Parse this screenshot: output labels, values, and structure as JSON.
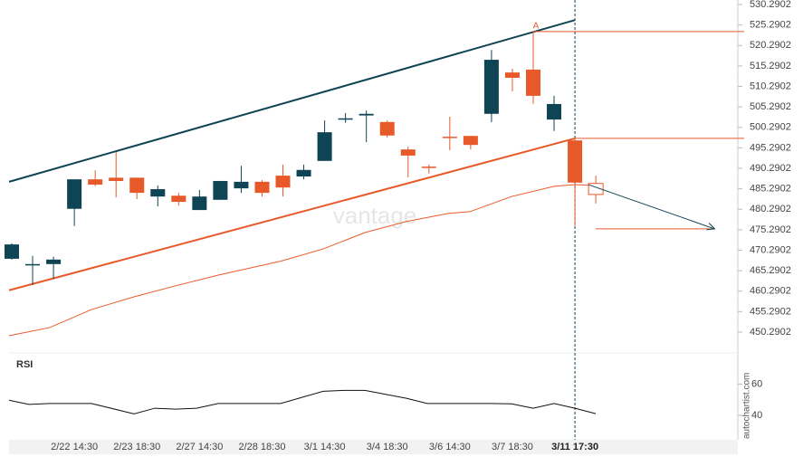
{
  "chart_data": {
    "type": "candlestick",
    "color_up": "#0f4454",
    "color_down": "#e8592a",
    "candles": {
      "open": [
        468.2,
        466.9,
        466.9,
        480.4,
        487.6,
        488.0,
        488.0,
        483.4,
        483.6,
        480.1,
        482.6,
        485.4,
        487.0,
        488.5,
        488.3,
        492.1,
        502.2,
        503.2,
        501.6,
        494.9,
        490.7,
        498.0,
        498.2,
        503.6,
        513.7,
        514.4,
        502.2,
        497.1
      ],
      "high": [
        472.0,
        468.9,
        468.7,
        487.6,
        489.8,
        494.3,
        488.0,
        486.1,
        484.3,
        485.0,
        487.2,
        490.9,
        487.4,
        491.2,
        491.2,
        502.0,
        503.8,
        504.4,
        502.0,
        495.6,
        491.2,
        502.9,
        498.2,
        519.2,
        514.6,
        523.7,
        508.0,
        497.8
      ],
      "low": [
        468.0,
        461.8,
        463.3,
        476.2,
        485.9,
        483.2,
        482.8,
        481.0,
        481.2,
        480.1,
        482.6,
        484.3,
        483.4,
        483.4,
        487.6,
        492.1,
        501.4,
        496.7,
        497.8,
        488.1,
        489.0,
        494.7,
        494.9,
        501.6,
        509.1,
        506.0,
        499.4,
        476.2
      ],
      "close": [
        471.7,
        466.9,
        468.0,
        487.6,
        486.3,
        487.2,
        484.3,
        485.2,
        482.1,
        483.4,
        487.2,
        487.0,
        484.3,
        485.6,
        489.9,
        499.1,
        502.5,
        503.6,
        498.3,
        493.4,
        490.5,
        497.9,
        496.0,
        516.8,
        512.4,
        508.0,
        506.0,
        486.8
      ]
    },
    "forecast_candle": {
      "index": 28,
      "open": 486.6,
      "high": 488.5,
      "low": 481.7,
      "close": 483.9
    },
    "trend_lines": [
      {
        "from": [
          -0.13,
          487.0
        ],
        "to": [
          27,
          526.5
        ],
        "color": "#0f4454"
      },
      {
        "from": [
          -0.13,
          460.5
        ],
        "to": [
          27,
          497.6
        ],
        "color": "#e8592a"
      }
    ],
    "moving_average": {
      "color": "#e8592a",
      "x": [
        -0.13,
        1.82,
        3.82,
        5.86,
        7.86,
        9.9,
        12.89,
        14.93,
        16.93,
        18.92,
        20.96,
        21.96,
        23.96,
        26,
        27,
        28
      ],
      "values": [
        449.4,
        451.4,
        455.8,
        458.9,
        461.6,
        464.2,
        467.6,
        470.6,
        474.6,
        477.3,
        479.3,
        479.7,
        483.4,
        485.9,
        486.3,
        486.1
      ]
    },
    "levels": [
      {
        "value": 523.7,
        "from": 25
      },
      {
        "value": 497.6,
        "from": 27
      },
      {
        "value": 475.5,
        "from": 28,
        "to": 33.7
      }
    ],
    "arrow": {
      "from": [
        27.65,
        486.3
      ],
      "to": [
        33.7,
        475.5
      ]
    },
    "pattern_label": {
      "text": "A",
      "index": 25
    },
    "cursor_index": 27,
    "ylim": [
      445.2,
      531.4
    ],
    "yticks": [
      450.2902,
      455.2902,
      460.2902,
      465.2902,
      470.2902,
      475.2902,
      480.2902,
      485.2902,
      490.2902,
      495.2902,
      500.2902,
      505.2902,
      510.2902,
      515.2902,
      520.2902,
      525.2902,
      530.2902
    ],
    "xtick_labels": [
      {
        "index": 3,
        "label": "2/22 14:30"
      },
      {
        "index": 6,
        "label": "2/23 18:30"
      },
      {
        "index": 9,
        "label": "2/27 14:30"
      },
      {
        "index": 12,
        "label": "2/28 18:30"
      },
      {
        "index": 15,
        "label": "3/1 14:30"
      },
      {
        "index": 18,
        "label": "3/4 18:30"
      },
      {
        "index": 21,
        "label": "3/6 14:30"
      },
      {
        "index": 24,
        "label": "3/7 18:30"
      },
      {
        "index": 27,
        "label": "3/11 17:30"
      }
    ],
    "rsi": {
      "title": "RSI",
      "x": [
        -0.13,
        0.82,
        1.82,
        3.82,
        5.86,
        6.86,
        7.86,
        8.86,
        9.9,
        11.89,
        12.89,
        14.93,
        15.93,
        16.93,
        18.92,
        19.92,
        22.96,
        23.96,
        25,
        26,
        27,
        28
      ],
      "values": [
        49.7,
        47,
        47.6,
        47.6,
        41,
        44.6,
        44,
        44.6,
        47.6,
        47.6,
        47.6,
        55.4,
        56,
        56,
        50.9,
        47.6,
        47.6,
        47.4,
        44.6,
        47.6,
        44.6,
        41.1
      ],
      "ylim": [
        25,
        77
      ],
      "yticks": [
        40,
        60
      ]
    },
    "watermark": "vantage",
    "source": "autochartist.com"
  }
}
